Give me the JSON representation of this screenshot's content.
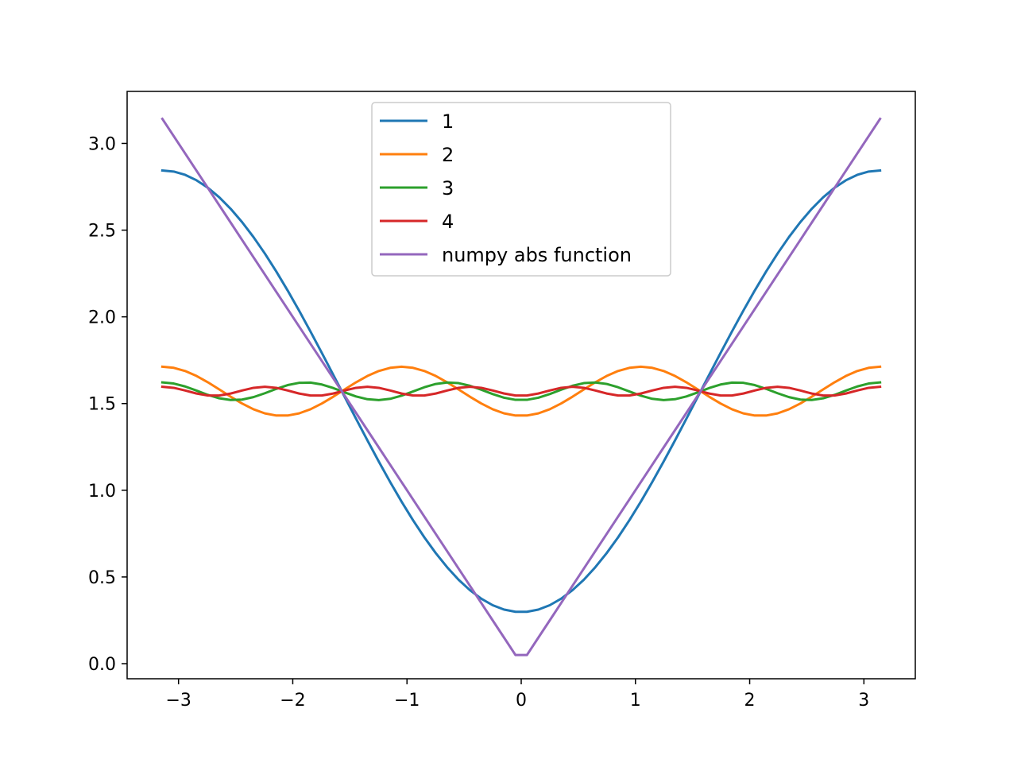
{
  "chart_data": {
    "type": "line",
    "title": "",
    "xlabel": "",
    "ylabel": "",
    "xlim": [
      -3.45,
      3.45
    ],
    "ylim": [
      -0.087,
      3.3
    ],
    "grid": false,
    "legend_position": "upper center",
    "x_ticks": [
      {
        "value": -3,
        "label": "−3"
      },
      {
        "value": -2,
        "label": "−2"
      },
      {
        "value": -1,
        "label": "−1"
      },
      {
        "value": 0,
        "label": "0"
      },
      {
        "value": 1,
        "label": "1"
      },
      {
        "value": 2,
        "label": "2"
      },
      {
        "value": 3,
        "label": "3"
      }
    ],
    "y_ticks": [
      {
        "value": 0.0,
        "label": "0.0"
      },
      {
        "value": 0.5,
        "label": "0.5"
      },
      {
        "value": 1.0,
        "label": "1.0"
      },
      {
        "value": 1.5,
        "label": "1.5"
      },
      {
        "value": 2.0,
        "label": "2.0"
      },
      {
        "value": 2.5,
        "label": "2.5"
      },
      {
        "value": 3.0,
        "label": "3.0"
      }
    ],
    "x_domain": [
      -3.14159,
      3.14159
    ],
    "n_points": 64,
    "series": [
      {
        "name": "1",
        "color": "#1f77b4",
        "formula": "pi/2 - (4/pi)*cos(x)"
      },
      {
        "name": "2",
        "color": "#ff7f0e",
        "formula": "pi/2 - (4/(pi*9))*cos(3x)"
      },
      {
        "name": "3",
        "color": "#2ca02c",
        "formula": "pi/2 - (4/(pi*25))*cos(5x)"
      },
      {
        "name": "4",
        "color": "#d62728",
        "formula": "pi/2 - (4/(pi*49))*cos(7x)"
      },
      {
        "name": "numpy abs function",
        "color": "#9467bd",
        "formula": "abs(x)"
      }
    ]
  }
}
